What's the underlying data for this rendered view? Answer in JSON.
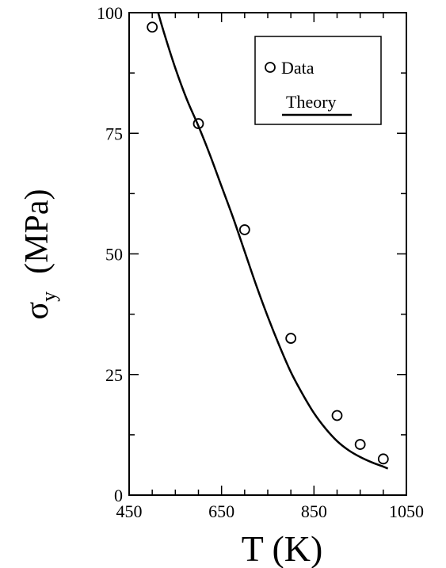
{
  "chart_data": {
    "type": "scatter",
    "xlabel": "T  (K)",
    "ylabel_symbol": "σ",
    "ylabel_subscript": "y",
    "ylabel_unit": "(MPa)",
    "xlim": [
      450,
      1050
    ],
    "ylim": [
      0,
      100
    ],
    "x_ticks": [
      450,
      650,
      850,
      1050
    ],
    "y_ticks": [
      0,
      25,
      50,
      75,
      100
    ],
    "x_tick_labels": [
      "450",
      "650",
      "850",
      "1050"
    ],
    "y_tick_labels": [
      "0",
      "25",
      "50",
      "75",
      "100"
    ],
    "grid": false,
    "legend_position": "top-right",
    "series": [
      {
        "name": "Data",
        "kind": "scatter",
        "marker": "open-circle",
        "x": [
          500,
          600,
          700,
          800,
          900,
          950,
          1000
        ],
        "y": [
          97,
          77,
          55,
          32.5,
          16.5,
          10.5,
          7.5
        ]
      },
      {
        "name": "Theory",
        "kind": "line",
        "x": [
          500,
          510,
          525,
          550,
          575,
          600,
          625,
          650,
          675,
          700,
          725,
          750,
          775,
          800,
          825,
          850,
          875,
          900,
          925,
          950,
          975,
          1000,
          1010
        ],
        "y": [
          105,
          101,
          96,
          88.5,
          82,
          76.5,
          70.5,
          64,
          57.5,
          50.5,
          43.5,
          37,
          31,
          25.5,
          21,
          17,
          13.8,
          11.2,
          9.3,
          7.9,
          6.8,
          5.9,
          5.5
        ]
      }
    ],
    "colors": {
      "line": "#000000",
      "marker_stroke": "#000000",
      "background": "#ffffff"
    }
  }
}
